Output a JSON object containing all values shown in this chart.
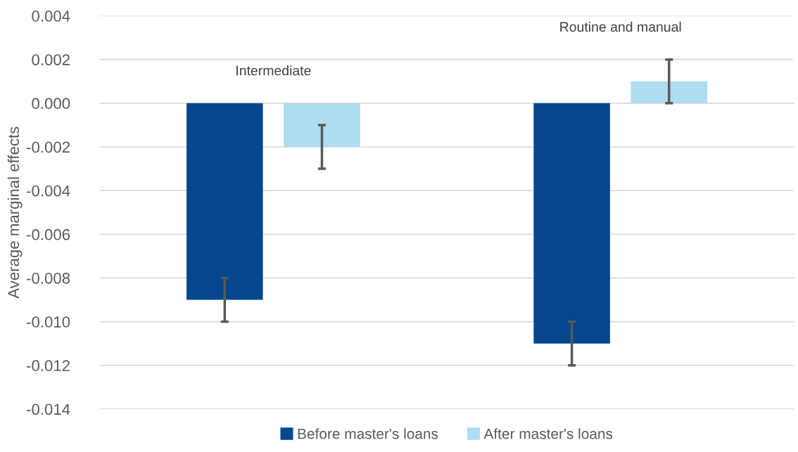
{
  "chart_data": {
    "type": "bar",
    "ylabel": "Average marginal effects",
    "categories": [
      "Intermediate",
      "Routine and manual"
    ],
    "series": [
      {
        "name": "Before master's loans",
        "color": "#05468f",
        "values": [
          -0.009,
          -0.011
        ],
        "errors": [
          0.001,
          0.001
        ]
      },
      {
        "name": "After master's loans",
        "color": "#aedcf0",
        "values": [
          -0.002,
          0.001
        ],
        "errors": [
          0.001,
          0.001
        ]
      }
    ],
    "ylim": [
      -0.014,
      0.004
    ],
    "yticks": [
      {
        "value": 0.004,
        "label": "0.004"
      },
      {
        "value": 0.002,
        "label": "0.002"
      },
      {
        "value": 0,
        "label": "0.000"
      },
      {
        "value": -0.002,
        "label": "-0.002"
      },
      {
        "value": -0.004,
        "label": "-0.004"
      },
      {
        "value": -0.006,
        "label": "-0.006"
      },
      {
        "value": -0.008,
        "label": "-0.008"
      },
      {
        "value": -0.01,
        "label": "-0.010"
      },
      {
        "value": -0.012,
        "label": "-0.012"
      },
      {
        "value": -0.014,
        "label": "-0.014"
      }
    ],
    "grid": "y",
    "legend": "bottom"
  }
}
